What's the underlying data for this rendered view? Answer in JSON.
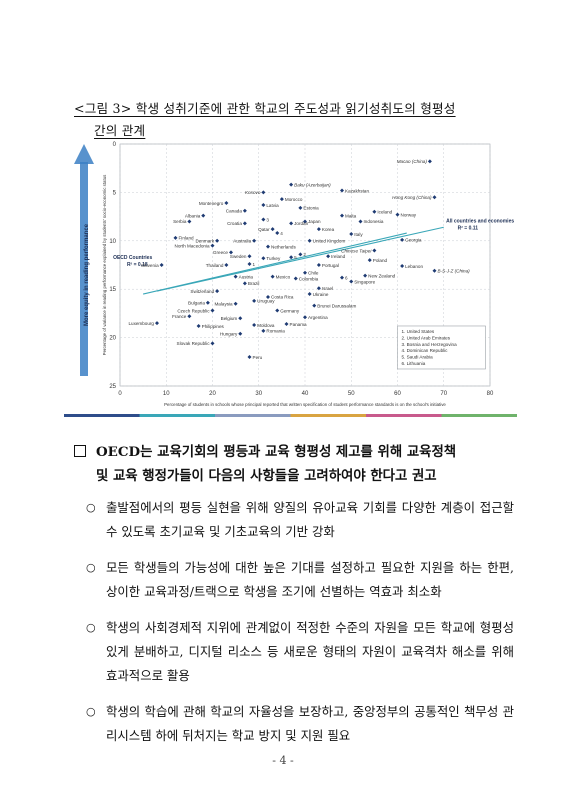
{
  "caption": {
    "line1": "<그림 3> 학생 성취기준에 관한 학교의 주도성과 읽기성취도의 형평성",
    "line2": "간의 관계"
  },
  "chart_data": {
    "type": "scatter",
    "xlabel": "Percentage of students in schools whose principal reported that written specification of student performance standards is on the school's initiative",
    "ylabel": "Percentage of variance in reading performance explained by students' socio-economic status",
    "arrow_label": "More equity in reading performance",
    "xlim": [
      0,
      80
    ],
    "ylim": [
      0,
      25
    ],
    "y_reversed": true,
    "xticks": [
      0,
      10,
      20,
      30,
      40,
      50,
      60,
      70,
      80
    ],
    "yticks": [
      0,
      5,
      10,
      15,
      20,
      25
    ],
    "grid": true,
    "points": [
      {
        "label": "Macao (China)",
        "x": 67,
        "y": 1.8
      },
      {
        "label": "Hong Kong (China)",
        "x": 68,
        "y": 5.5
      },
      {
        "label": "Baku (Azerbaijan)",
        "x": 37,
        "y": 4.2
      },
      {
        "label": "Kazakhstan",
        "x": 48,
        "y": 4.8
      },
      {
        "label": "Kosovo",
        "x": 31,
        "y": 5.0
      },
      {
        "label": "Morocco",
        "x": 35,
        "y": 5.7
      },
      {
        "label": "Montenegro",
        "x": 23,
        "y": 6.1
      },
      {
        "label": "Latvia",
        "x": 31,
        "y": 6.3
      },
      {
        "label": "Estonia",
        "x": 39,
        "y": 6.6
      },
      {
        "label": "Canada",
        "x": 27,
        "y": 6.9
      },
      {
        "label": "Iceland",
        "x": 55,
        "y": 7.0
      },
      {
        "label": "Albania",
        "x": 18,
        "y": 7.4
      },
      {
        "label": "Norway",
        "x": 60,
        "y": 7.3
      },
      {
        "label": "Malta",
        "x": 48,
        "y": 7.4
      },
      {
        "label": "Serbia",
        "x": 15,
        "y": 8.0
      },
      {
        "label": "Japan",
        "x": 40,
        "y": 8.0
      },
      {
        "label": "Indonesia",
        "x": 52,
        "y": 8.0
      },
      {
        "label": "3",
        "x": 31,
        "y": 7.8
      },
      {
        "label": "Croatia",
        "x": 27,
        "y": 8.2
      },
      {
        "label": "Jordan",
        "x": 37,
        "y": 8.2
      },
      {
        "label": "Korea",
        "x": 43,
        "y": 8.8
      },
      {
        "label": "Qatar",
        "x": 33,
        "y": 8.8
      },
      {
        "label": "4",
        "x": 34,
        "y": 9.2
      },
      {
        "label": "Italy",
        "x": 50,
        "y": 9.3
      },
      {
        "label": "Finland",
        "x": 12,
        "y": 9.7
      },
      {
        "label": "Denmark",
        "x": 21,
        "y": 10.0
      },
      {
        "label": "Australia",
        "x": 29,
        "y": 10.0
      },
      {
        "label": "United Kingdom",
        "x": 41,
        "y": 10.0
      },
      {
        "label": "Georgia",
        "x": 61,
        "y": 9.9
      },
      {
        "label": "North Macedonia",
        "x": 20,
        "y": 10.5
      },
      {
        "label": "Netherlands",
        "x": 32,
        "y": 10.6
      },
      {
        "label": "Chinese Taipei",
        "x": 55,
        "y": 11.0
      },
      {
        "label": "Greece",
        "x": 24,
        "y": 11.2
      },
      {
        "label": "Sweden",
        "x": 28,
        "y": 11.6
      },
      {
        "label": "Turkey",
        "x": 31,
        "y": 11.8
      },
      {
        "label": "5",
        "x": 37,
        "y": 11.7
      },
      {
        "label": "Ireland",
        "x": 45,
        "y": 11.6
      },
      {
        "label": "Poland",
        "x": 54,
        "y": 12.0
      },
      {
        "label": "Slovenia",
        "x": 9,
        "y": 12.5
      },
      {
        "label": "Thailand",
        "x": 23,
        "y": 12.5
      },
      {
        "label": "1",
        "x": 28,
        "y": 12.4
      },
      {
        "label": "2",
        "x": 39,
        "y": 11.4
      },
      {
        "label": "Portugal",
        "x": 43,
        "y": 12.5
      },
      {
        "label": "Lebanon",
        "x": 61,
        "y": 12.6
      },
      {
        "label": "B-S-J-Z (China)",
        "x": 68,
        "y": 13.1
      },
      {
        "label": "Chile",
        "x": 40,
        "y": 13.3
      },
      {
        "label": "Austria",
        "x": 25,
        "y": 13.7
      },
      {
        "label": "Mexico",
        "x": 33,
        "y": 13.7
      },
      {
        "label": "Colombia",
        "x": 38,
        "y": 13.9
      },
      {
        "label": "6",
        "x": 48,
        "y": 13.8
      },
      {
        "label": "New Zealand",
        "x": 53,
        "y": 13.6
      },
      {
        "label": "Brazil",
        "x": 27,
        "y": 14.4
      },
      {
        "label": "Singapore",
        "x": 50,
        "y": 14.2
      },
      {
        "label": "Israel",
        "x": 43,
        "y": 14.9
      },
      {
        "label": "Switzerland",
        "x": 21,
        "y": 15.2
      },
      {
        "label": "Ukraine",
        "x": 41,
        "y": 15.5
      },
      {
        "label": "Costa Rica",
        "x": 32,
        "y": 15.8
      },
      {
        "label": "Bulgaria",
        "x": 19,
        "y": 16.4
      },
      {
        "label": "Malaysia",
        "x": 25,
        "y": 16.5
      },
      {
        "label": "Uruguay",
        "x": 29,
        "y": 16.2
      },
      {
        "label": "Brunei Darussalam",
        "x": 42,
        "y": 16.7
      },
      {
        "label": "Czech Republic",
        "x": 20,
        "y": 17.2
      },
      {
        "label": "Germany",
        "x": 34,
        "y": 17.2
      },
      {
        "label": "France",
        "x": 15,
        "y": 17.8
      },
      {
        "label": "Belgium",
        "x": 26,
        "y": 18.0
      },
      {
        "label": "Argentina",
        "x": 40,
        "y": 17.9
      },
      {
        "label": "Luxembourg",
        "x": 8,
        "y": 18.5
      },
      {
        "label": "Philippines",
        "x": 17,
        "y": 18.8
      },
      {
        "label": "Panama",
        "x": 36,
        "y": 18.6
      },
      {
        "label": "Moldova",
        "x": 29,
        "y": 18.7
      },
      {
        "label": "Romania",
        "x": 31,
        "y": 19.3
      },
      {
        "label": "Hungary",
        "x": 26,
        "y": 19.6
      },
      {
        "label": "Slovak Republic",
        "x": 20,
        "y": 20.6
      },
      {
        "label": "Peru",
        "x": 28,
        "y": 22.0
      }
    ],
    "trendlines": [
      {
        "name": "All countries and economies",
        "r2_label": "R² = 0.11",
        "from": [
          8,
          15.2
        ],
        "to": [
          70,
          8.6
        ]
      },
      {
        "name": "OECD Countries",
        "r2_label": "R² = 0.18",
        "from": [
          5,
          15.5
        ],
        "to": [
          62,
          9.2
        ]
      }
    ],
    "legend_note": [
      "1. United States",
      "2. United Arab Emirates",
      "3. Bosnia and Herzegovina",
      "4. Dominican Republic",
      "5. Saudi Arabia",
      "6. Lithuania"
    ],
    "colors": {
      "point": "#1f3b73",
      "trend": "#3aa7b8",
      "grid": "#c9cdd3",
      "arrow": "#3b7fc4"
    }
  },
  "section": {
    "heading_line1": "OECD는 교육기회의 평등과 교육 형평성 제고를 위해 교육정책",
    "heading_line2": "및 교육 행정가들이 다음의 사항들을 고려하여야 한다고 권고",
    "bullet_mark": "○",
    "bullets": [
      "출발점에서의 평등 실현을 위해 양질의 유아교육 기회를 다양한 계층이 접근할 수 있도록 초기교육 및 기초교육의 기반 강화",
      "모든 학생들의 가능성에 대한 높은 기대를 설정하고 필요한 지원을 하는 한편, 상이한 교육과정/트랙으로 학생을 조기에 선별하는 역효과 최소화",
      "학생의 사회경제적 지위에 관계없이 적정한 수준의 자원을 모든 학교에 형평성 있게 분배하고, 디지털 리소스 등 새로운 형태의 자원이 교육격차 해소를 위해 효과적으로 활용",
      "학생의 학습에 관해 학교의 자율성을 보장하고, 중앙정부의 공통적인 책무성 관리시스템 하에 뒤처지는 학교 방지 및 지원 필요"
    ]
  },
  "page_number": "- 4 -"
}
